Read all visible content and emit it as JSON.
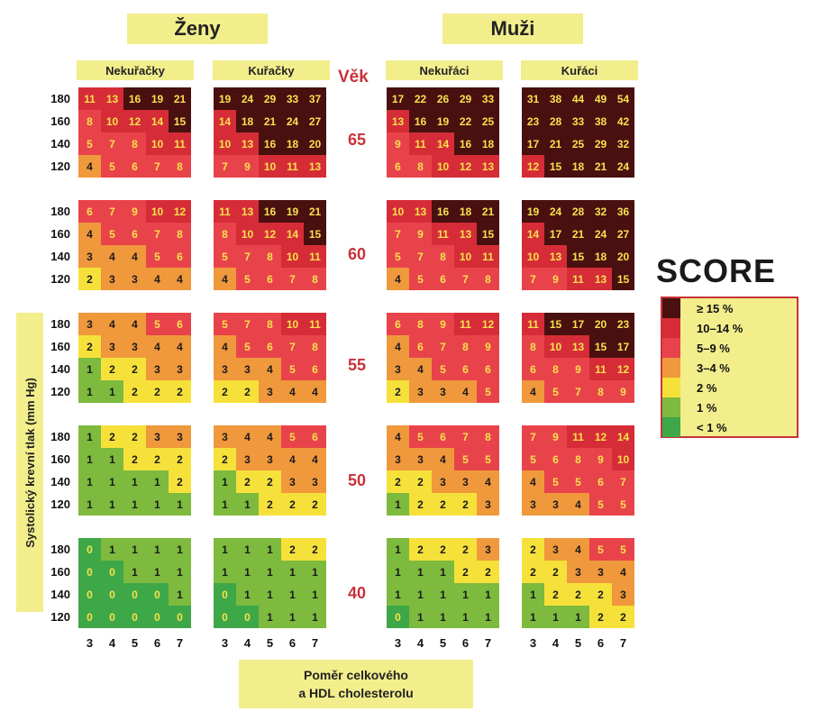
{
  "gender_headers": [
    "Ženy",
    "Muži"
  ],
  "panel_headers": [
    "Nekuřačky",
    "Kuřačky",
    "Nekuřáci",
    "Kuřáci"
  ],
  "age_header": "Věk",
  "ages": [
    "65",
    "60",
    "55",
    "50",
    "40"
  ],
  "y_axis_label": "Systolický krevní tlak (mm Hg)",
  "x_axis_label_line1": "Poměr celkového",
  "x_axis_label_line2": "a HDL cholesterolu",
  "score_title": "SCORE",
  "legend_labels": [
    "≥ 15 %",
    "10–14 %",
    "5–9 %",
    "3–4 %",
    "2 %",
    "1 %",
    "< 1 %"
  ],
  "category_colors": [
    "#4a1010",
    "#d62c37",
    "#e8434a",
    "#f0983c",
    "#f6e13a",
    "#7dba3e",
    "#3ea748"
  ],
  "chart_data": {
    "type": "heatmap",
    "title": "SCORE",
    "xlabel": "Poměr celkového a HDL cholesterolu",
    "ylabel": "Systolický krevní tlak (mm Hg)",
    "x": [
      3,
      4,
      5,
      6,
      7
    ],
    "y": [
      180,
      160,
      140,
      120
    ],
    "panels": [
      {
        "gender": "Ženy",
        "group": "Nekuřačky",
        "age": 65,
        "values": [
          [
            11,
            13,
            16,
            19,
            21
          ],
          [
            8,
            10,
            12,
            14,
            15
          ],
          [
            5,
            7,
            8,
            10,
            11
          ],
          [
            4,
            5,
            6,
            7,
            8
          ]
        ]
      },
      {
        "gender": "Ženy",
        "group": "Kuřačky",
        "age": 65,
        "values": [
          [
            19,
            24,
            29,
            33,
            37
          ],
          [
            14,
            18,
            21,
            24,
            27
          ],
          [
            10,
            13,
            16,
            18,
            20
          ],
          [
            7,
            9,
            10,
            11,
            13
          ]
        ]
      },
      {
        "gender": "Muži",
        "group": "Nekuřáci",
        "age": 65,
        "values": [
          [
            17,
            22,
            26,
            29,
            33
          ],
          [
            13,
            16,
            19,
            22,
            25
          ],
          [
            9,
            11,
            14,
            16,
            18
          ],
          [
            6,
            8,
            10,
            12,
            13
          ]
        ]
      },
      {
        "gender": "Muži",
        "group": "Kuřáci",
        "age": 65,
        "values": [
          [
            31,
            38,
            44,
            49,
            54
          ],
          [
            23,
            28,
            33,
            38,
            42
          ],
          [
            17,
            21,
            25,
            29,
            32
          ],
          [
            12,
            15,
            18,
            21,
            24
          ]
        ]
      },
      {
        "gender": "Ženy",
        "group": "Nekuřačky",
        "age": 60,
        "values": [
          [
            6,
            7,
            9,
            10,
            12
          ],
          [
            4,
            5,
            6,
            7,
            8
          ],
          [
            3,
            4,
            4,
            5,
            6
          ],
          [
            2,
            3,
            3,
            4,
            4
          ]
        ]
      },
      {
        "gender": "Ženy",
        "group": "Kuřačky",
        "age": 60,
        "values": [
          [
            11,
            13,
            16,
            19,
            21
          ],
          [
            8,
            10,
            12,
            14,
            15
          ],
          [
            5,
            7,
            8,
            10,
            11
          ],
          [
            4,
            5,
            6,
            7,
            8
          ]
        ]
      },
      {
        "gender": "Muži",
        "group": "Nekuřáci",
        "age": 60,
        "values": [
          [
            10,
            13,
            16,
            18,
            21
          ],
          [
            7,
            9,
            11,
            13,
            15
          ],
          [
            5,
            7,
            8,
            10,
            11
          ],
          [
            4,
            5,
            6,
            7,
            8
          ]
        ]
      },
      {
        "gender": "Muži",
        "group": "Kuřáci",
        "age": 60,
        "values": [
          [
            19,
            24,
            28,
            32,
            36
          ],
          [
            14,
            17,
            21,
            24,
            27
          ],
          [
            10,
            13,
            15,
            18,
            20
          ],
          [
            7,
            9,
            11,
            13,
            15
          ]
        ]
      },
      {
        "gender": "Ženy",
        "group": "Nekuřačky",
        "age": 55,
        "values": [
          [
            3,
            4,
            4,
            5,
            6
          ],
          [
            2,
            3,
            3,
            4,
            4
          ],
          [
            1,
            2,
            2,
            3,
            3
          ],
          [
            1,
            1,
            2,
            2,
            2
          ]
        ]
      },
      {
        "gender": "Ženy",
        "group": "Kuřačky",
        "age": 55,
        "values": [
          [
            5,
            7,
            8,
            10,
            11
          ],
          [
            4,
            5,
            6,
            7,
            8
          ],
          [
            3,
            3,
            4,
            5,
            6
          ],
          [
            2,
            2,
            3,
            4,
            4
          ]
        ]
      },
      {
        "gender": "Muži",
        "group": "Nekuřáci",
        "age": 55,
        "values": [
          [
            6,
            8,
            9,
            11,
            12
          ],
          [
            4,
            6,
            7,
            8,
            9
          ],
          [
            3,
            4,
            5,
            6,
            6
          ],
          [
            2,
            3,
            3,
            4,
            5
          ]
        ]
      },
      {
        "gender": "Muži",
        "group": "Kuřáci",
        "age": 55,
        "values": [
          [
            11,
            15,
            17,
            20,
            23
          ],
          [
            8,
            10,
            13,
            15,
            17
          ],
          [
            6,
            8,
            9,
            11,
            12
          ],
          [
            4,
            5,
            7,
            8,
            9
          ]
        ]
      },
      {
        "gender": "Ženy",
        "group": "Nekuřačky",
        "age": 50,
        "values": [
          [
            1,
            2,
            2,
            3,
            3
          ],
          [
            1,
            1,
            2,
            2,
            2
          ],
          [
            1,
            1,
            1,
            1,
            2
          ],
          [
            1,
            1,
            1,
            1,
            1
          ]
        ]
      },
      {
        "gender": "Ženy",
        "group": "Kuřačky",
        "age": 50,
        "values": [
          [
            3,
            4,
            4,
            5,
            6
          ],
          [
            2,
            3,
            3,
            4,
            4
          ],
          [
            1,
            2,
            2,
            3,
            3
          ],
          [
            1,
            1,
            2,
            2,
            2
          ]
        ]
      },
      {
        "gender": "Muži",
        "group": "Nekuřáci",
        "age": 50,
        "values": [
          [
            4,
            5,
            6,
            7,
            8
          ],
          [
            3,
            3,
            4,
            5,
            5
          ],
          [
            2,
            2,
            3,
            3,
            4
          ],
          [
            1,
            2,
            2,
            2,
            3
          ]
        ]
      },
      {
        "gender": "Muži",
        "group": "Kuřáci",
        "age": 50,
        "values": [
          [
            7,
            9,
            11,
            12,
            14
          ],
          [
            5,
            6,
            8,
            9,
            10
          ],
          [
            4,
            5,
            5,
            6,
            7
          ],
          [
            3,
            3,
            4,
            5,
            5
          ]
        ]
      },
      {
        "gender": "Ženy",
        "group": "Nekuřačky",
        "age": 40,
        "values": [
          [
            0,
            1,
            1,
            1,
            1
          ],
          [
            0,
            0,
            1,
            1,
            1
          ],
          [
            0,
            0,
            0,
            0,
            1
          ],
          [
            0,
            0,
            0,
            0,
            0
          ]
        ]
      },
      {
        "gender": "Ženy",
        "group": "Kuřačky",
        "age": 40,
        "values": [
          [
            1,
            1,
            1,
            2,
            2
          ],
          [
            1,
            1,
            1,
            1,
            1
          ],
          [
            0,
            1,
            1,
            1,
            1
          ],
          [
            0,
            0,
            1,
            1,
            1
          ]
        ]
      },
      {
        "gender": "Muži",
        "group": "Nekuřáci",
        "age": 40,
        "values": [
          [
            1,
            2,
            2,
            2,
            3
          ],
          [
            1,
            1,
            1,
            2,
            2
          ],
          [
            1,
            1,
            1,
            1,
            1
          ],
          [
            0,
            1,
            1,
            1,
            1
          ]
        ]
      },
      {
        "gender": "Muži",
        "group": "Kuřáci",
        "age": 40,
        "values": [
          [
            2,
            3,
            4,
            5,
            5
          ],
          [
            2,
            2,
            3,
            3,
            4
          ],
          [
            1,
            2,
            2,
            2,
            3
          ],
          [
            1,
            1,
            1,
            2,
            2
          ]
        ]
      }
    ]
  }
}
